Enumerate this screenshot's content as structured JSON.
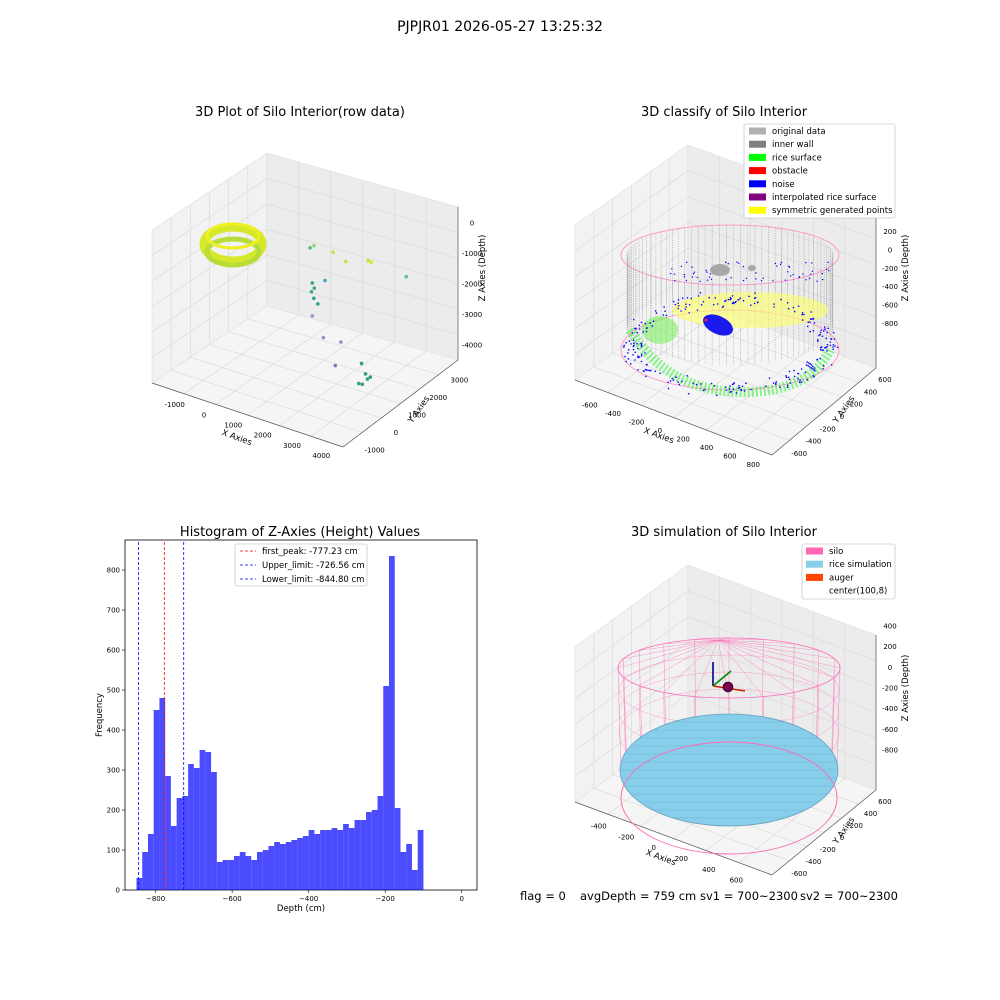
{
  "suptitle": "PJPJR01 2026-05-27 13:25:32",
  "colors": {
    "silo": "#ff69b4",
    "rice_simulation": "#87ceeb",
    "auger": "#ff4500",
    "hist_bar": "#0000ff",
    "peak_line": "#ff0000",
    "limit_line": "#0000ff",
    "original": "#b0b0b0",
    "inner_wall": "#808080",
    "rice_surface": "#00ff00",
    "obstacle": "#ff0000",
    "noise": "#0000ff",
    "interpolated": "#800080",
    "symmetric": "#ffff00"
  },
  "chart_data": [
    {
      "type": "scatter",
      "subtype": "3d",
      "title": "3D Plot of Silo Interior(row data)",
      "xlabel": "X Axies",
      "ylabel": "Y Axies",
      "zlabel": "Z Axies (Depth)",
      "xticks": [
        "-1000",
        "0",
        "1000",
        "2000",
        "3000",
        "4000"
      ],
      "yticks": [
        "-1000",
        "0",
        "1000",
        "2000",
        "3000"
      ],
      "zticks": [
        "0",
        "-1000",
        "-2000",
        "-3000",
        "-4000"
      ],
      "xlim": [
        -1400,
        4600
      ],
      "ylim": [
        -1300,
        3500
      ],
      "zlim": [
        -4400,
        200
      ],
      "outliers": [
        {
          "x": 180,
          "y": 3200,
          "z": -2000,
          "color": "#4bbf8a"
        },
        {
          "x": 300,
          "y": 3200,
          "z": -1900,
          "color": "#8fd46a"
        },
        {
          "x": 900,
          "y": 3200,
          "z": -1900,
          "color": "#c8e33a"
        },
        {
          "x": 1300,
          "y": 3200,
          "z": -2050,
          "color": "#c8e33a"
        },
        {
          "x": 2000,
          "y": 3200,
          "z": -1800,
          "color": "#c8e33a"
        },
        {
          "x": 2100,
          "y": 3200,
          "z": -1820,
          "color": "#dde82a"
        },
        {
          "x": 3200,
          "y": 3200,
          "z": -1900,
          "color": "#5ec58a"
        },
        {
          "x": 700,
          "y": 2600,
          "z": -2600,
          "color": "#3aa58f"
        },
        {
          "x": 750,
          "y": 2500,
          "z": -2800,
          "color": "#3aa58f"
        },
        {
          "x": 800,
          "y": 2550,
          "z": -2700,
          "color": "#3aa58f"
        },
        {
          "x": 900,
          "y": 2400,
          "z": -2900,
          "color": "#2f9e8e"
        },
        {
          "x": 950,
          "y": 2500,
          "z": -3100,
          "color": "#2f9e8e"
        },
        {
          "x": 1100,
          "y": 2600,
          "z": -2400,
          "color": "#46a9c4"
        },
        {
          "x": 1000,
          "y": 2200,
          "z": -3300,
          "color": "#9a8ccc"
        },
        {
          "x": 1500,
          "y": 2000,
          "z": -3700,
          "color": "#9a8ccc"
        },
        {
          "x": 1900,
          "y": 2200,
          "z": -3800,
          "color": "#9a8ccc"
        },
        {
          "x": 2100,
          "y": 1700,
          "z": -4200,
          "color": "#8a70bf"
        },
        {
          "x": 3000,
          "y": 1600,
          "z": -3800,
          "color": "#2fa07a"
        },
        {
          "x": 3200,
          "y": 1500,
          "z": -4000,
          "color": "#2fa07a"
        },
        {
          "x": 3300,
          "y": 1450,
          "z": -4100,
          "color": "#2fa07a"
        },
        {
          "x": 3250,
          "y": 1300,
          "z": -4200,
          "color": "#2fa07a"
        },
        {
          "x": 3100,
          "y": 1350,
          "z": -4250,
          "color": "#2fa07a"
        },
        {
          "x": 3350,
          "y": 1500,
          "z": -4050,
          "color": "#2fa07a"
        }
      ]
    },
    {
      "type": "scatter",
      "subtype": "3d",
      "title": "3D classify of Silo Interior",
      "xlabel": "X Axies",
      "ylabel": "Y Axies",
      "zlabel": "Z Axies (Depth)",
      "xticks": [
        "-600",
        "-400",
        "-200",
        "0",
        "200",
        "400",
        "600",
        "800"
      ],
      "yticks": [
        "-600",
        "-400",
        "-200",
        "0",
        "200",
        "400",
        "600"
      ],
      "zticks": [
        "200",
        "0",
        "-200",
        "-400",
        "-600",
        "-800"
      ],
      "xlim": [
        -700,
        850
      ],
      "ylim": [
        -700,
        700
      ],
      "zlim": [
        -950,
        350
      ],
      "legend": [
        {
          "label": "original data",
          "color": "#b0b0b0"
        },
        {
          "label": "inner wall",
          "color": "#808080"
        },
        {
          "label": "rice surface",
          "color": "#00ff00"
        },
        {
          "label": "obstacle",
          "color": "#ff0000"
        },
        {
          "label": "noise",
          "color": "#0000ff"
        },
        {
          "label": "interpolated rice surface",
          "color": "#800080"
        },
        {
          "label": "symmetric generated points",
          "color": "#ffff00"
        }
      ],
      "legend_loc": "upper right",
      "silo_radius": 650,
      "wall_top": 100,
      "wall_bottom": -830
    },
    {
      "type": "bar",
      "title": "Histogram of Z-Axies (Height) Values",
      "xlabel": "Depth (cm)",
      "ylabel": "Frequency",
      "xlim": [
        -880,
        40
      ],
      "ylim": [
        0,
        875
      ],
      "xticks": [
        -800,
        -600,
        -400,
        -200,
        0
      ],
      "yticks": [
        0,
        100,
        200,
        300,
        400,
        500,
        600,
        700,
        800
      ],
      "bin_start": -850,
      "bin_width": 15,
      "values": [
        30,
        95,
        140,
        450,
        480,
        285,
        160,
        230,
        235,
        315,
        305,
        350,
        345,
        295,
        70,
        75,
        75,
        85,
        95,
        85,
        75,
        95,
        100,
        110,
        120,
        115,
        120,
        125,
        130,
        135,
        150,
        140,
        150,
        150,
        155,
        150,
        165,
        155,
        175,
        175,
        195,
        200,
        235,
        510,
        835,
        205,
        95,
        115,
        50,
        150
      ],
      "vlines": [
        {
          "label": "first_peak: -777.23 cm",
          "x": -777.23,
          "color": "#ff0000"
        },
        {
          "label": "Upper_limit: -726.56 cm",
          "x": -726.56,
          "color": "#0000ff"
        },
        {
          "label": "Lower_limit: -844.80 cm",
          "x": -844.8,
          "color": "#0000ff"
        }
      ],
      "legend_loc": "upper center"
    },
    {
      "type": "scatter",
      "subtype": "3d",
      "title": "3D simulation of Silo Interior",
      "xlabel": "X Axies",
      "ylabel": "Y Axies",
      "zlabel": "Z Axies (Depth)",
      "xticks": [
        "-400",
        "-200",
        "0",
        "200",
        "400",
        "600"
      ],
      "yticks": [
        "-600",
        "-400",
        "-200",
        "0",
        "200",
        "400",
        "600"
      ],
      "zticks": [
        "400",
        "200",
        "0",
        "-200",
        "-400",
        "-600",
        "-800"
      ],
      "xlim": [
        -550,
        700
      ],
      "ylim": [
        -700,
        700
      ],
      "zlim": [
        -950,
        500
      ],
      "legend": [
        {
          "label": "silo",
          "color": "#ff69b4"
        },
        {
          "label": "rice simulation",
          "color": "#87ceeb"
        },
        {
          "label": "auger",
          "color": "#ff4500"
        },
        {
          "label": "center(100,8)",
          "color": ""
        }
      ],
      "legend_loc": "upper right",
      "center": [
        100,
        8
      ],
      "silo_radius": 650,
      "silo_top": 150,
      "silo_bottom": -850,
      "rice_level": -759
    }
  ],
  "status": {
    "flag": "flag = 0",
    "avg_depth": "avgDepth = 759 cm",
    "sv1": "sv1 = 700~2300",
    "sv2": "sv2 = 700~2300"
  }
}
